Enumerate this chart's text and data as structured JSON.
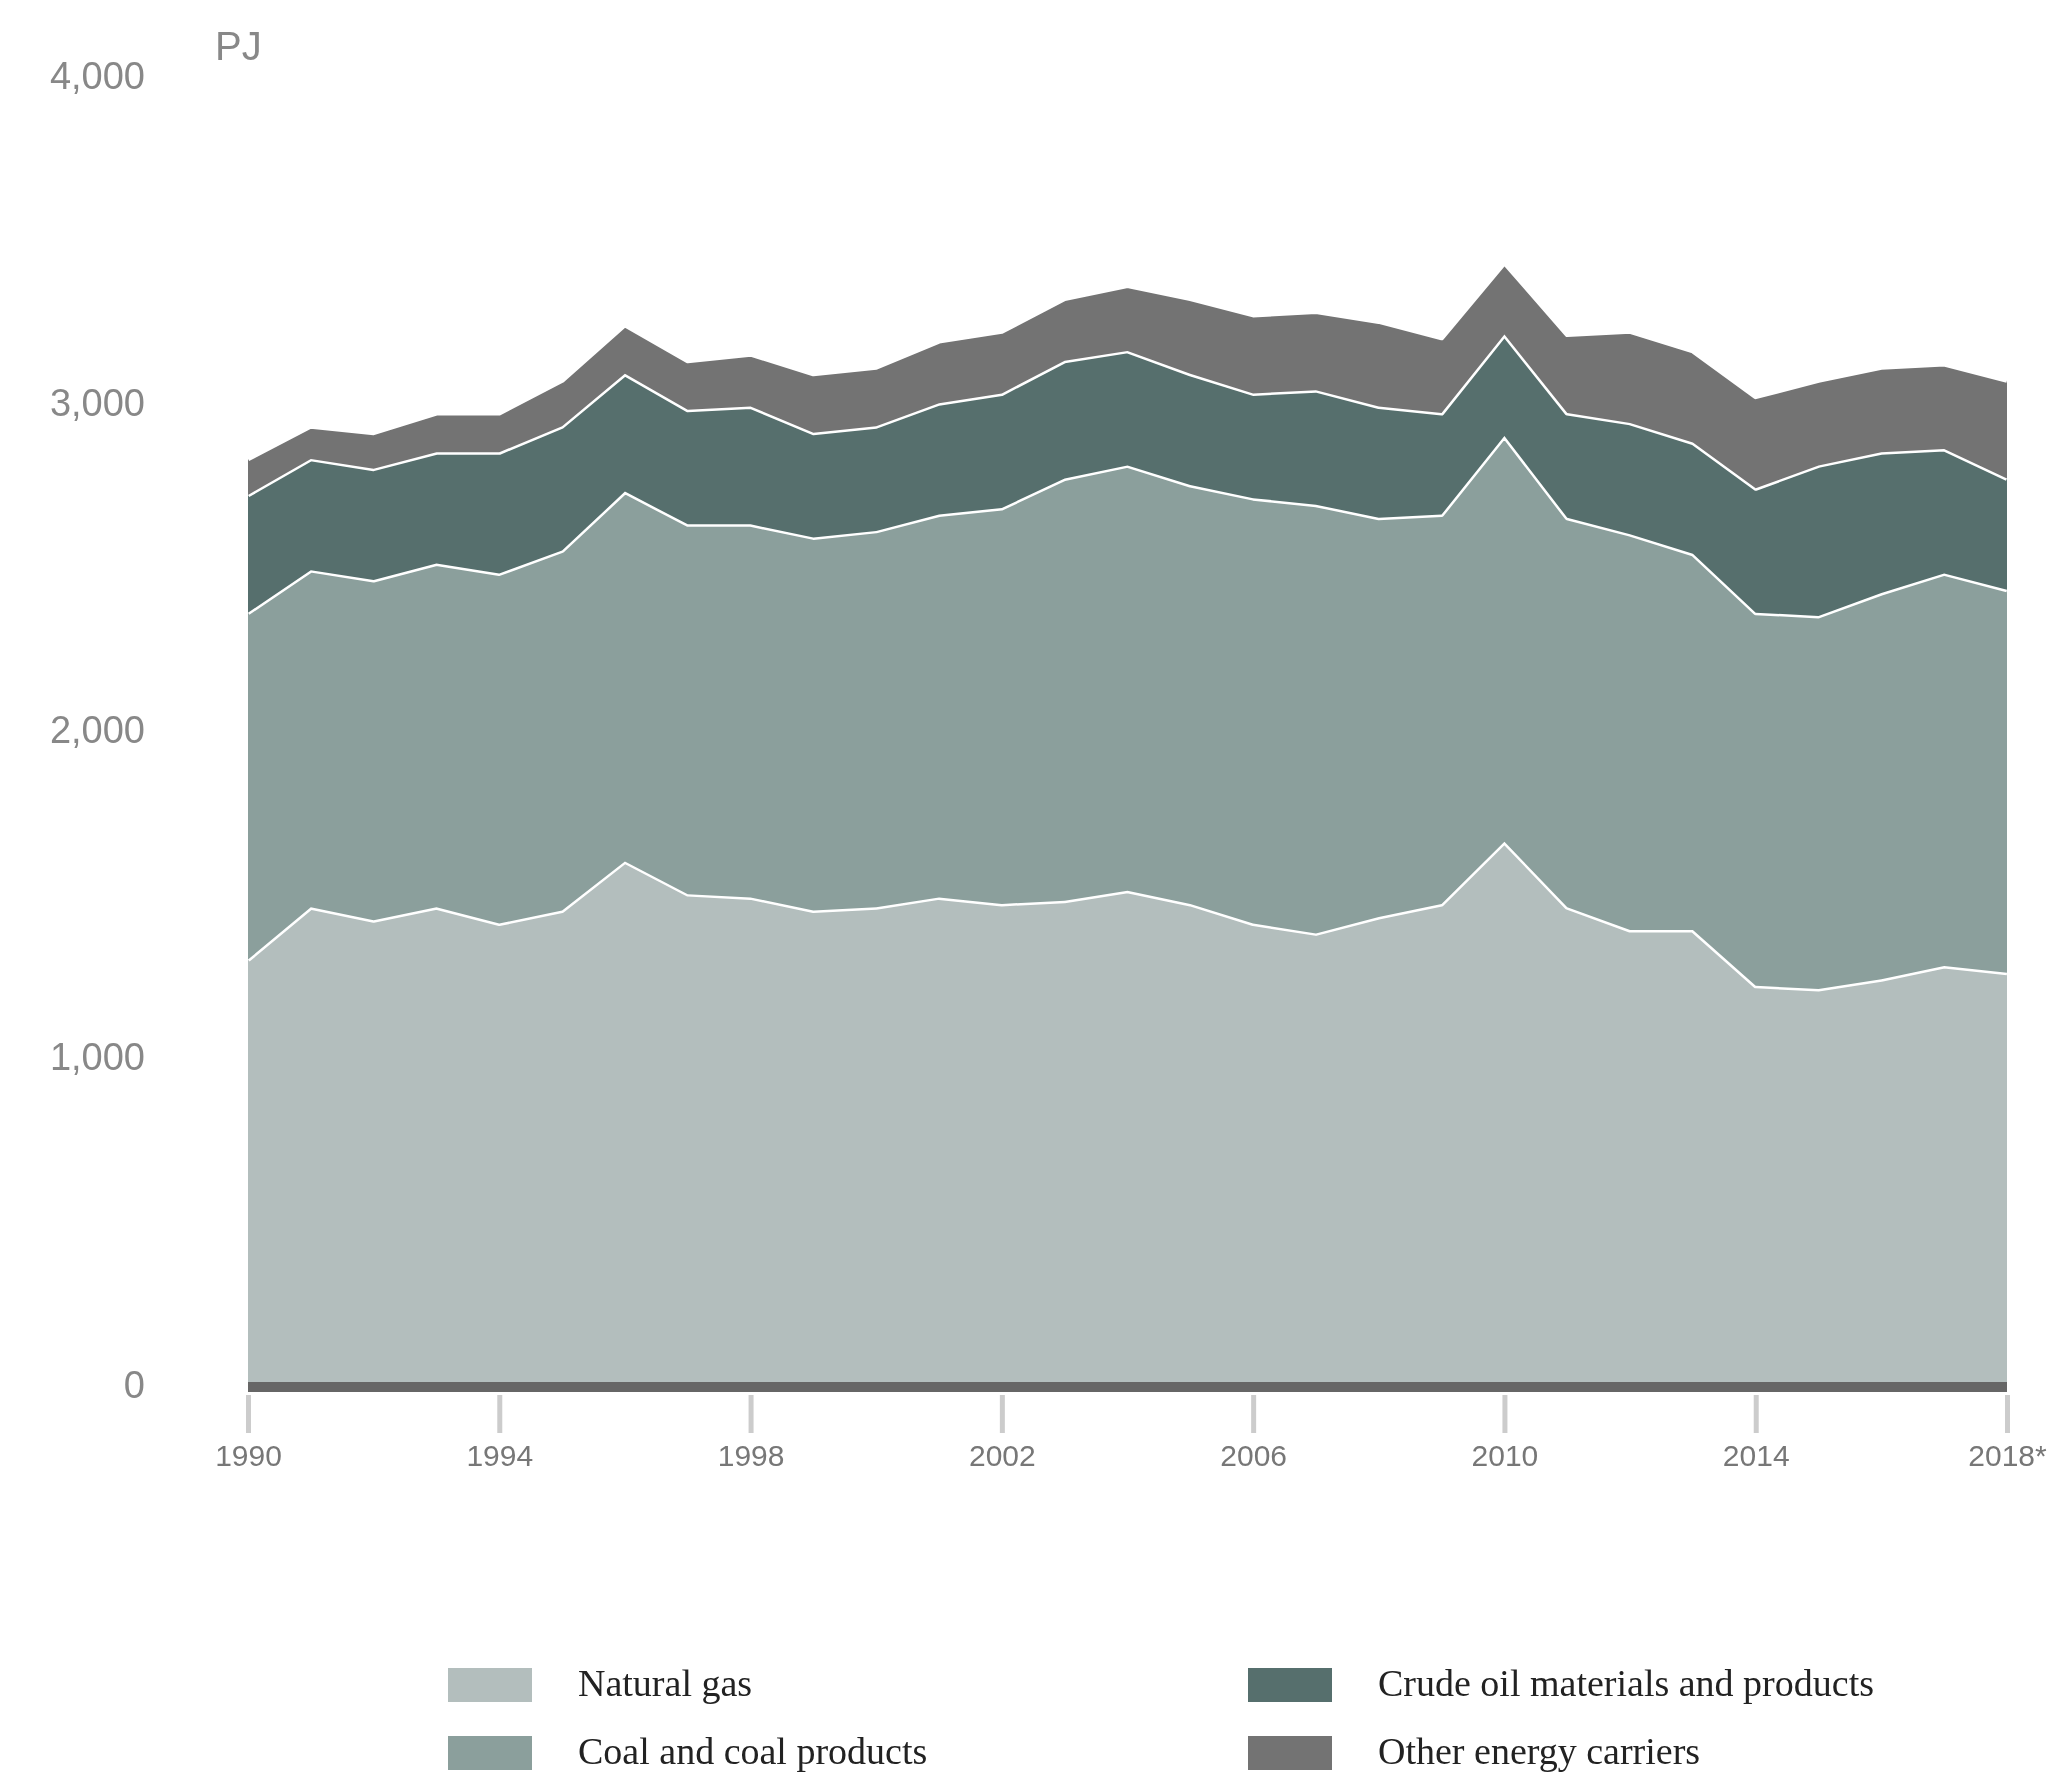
{
  "chart_data": {
    "type": "area",
    "stacked": true,
    "ylabel": "PJ",
    "x": [
      1990,
      1991,
      1992,
      1993,
      1994,
      1995,
      1996,
      1997,
      1998,
      1999,
      2000,
      2001,
      2002,
      2003,
      2004,
      2005,
      2006,
      2007,
      2008,
      2009,
      2010,
      2011,
      2012,
      2013,
      2014,
      2015,
      2016,
      2017,
      2018
    ],
    "xlim": [
      1990,
      2018
    ],
    "xticks": [
      1990,
      1994,
      1998,
      2002,
      2006,
      2010,
      2014,
      {
        "value": 2018,
        "label": "2018*"
      }
    ],
    "ylim": [
      0,
      4000
    ],
    "yticks": [
      0,
      {
        "value": 1000,
        "label": "1,000"
      },
      {
        "value": 2000,
        "label": "2,000"
      },
      {
        "value": 3000,
        "label": "3,000"
      },
      {
        "value": 4000,
        "label": "4,000"
      }
    ],
    "grid": false,
    "legend": "bottom",
    "series": [
      {
        "name": "Natural gas",
        "color": "#b3bebd",
        "values": [
          1300,
          1460,
          1420,
          1460,
          1410,
          1450,
          1600,
          1500,
          1490,
          1450,
          1460,
          1490,
          1470,
          1480,
          1510,
          1470,
          1410,
          1380,
          1430,
          1470,
          1660,
          1460,
          1390,
          1390,
          1220,
          1210,
          1240,
          1280,
          1260
        ]
      },
      {
        "name": "Coal and coal products",
        "color": "#8b9f9c",
        "values": [
          1060,
          1030,
          1040,
          1050,
          1070,
          1100,
          1130,
          1130,
          1140,
          1140,
          1150,
          1170,
          1210,
          1290,
          1300,
          1280,
          1300,
          1310,
          1220,
          1190,
          1240,
          1190,
          1210,
          1150,
          1140,
          1140,
          1180,
          1200,
          1170
        ]
      },
      {
        "name": "Crude oil materials and products",
        "color": "#566f6d",
        "values": [
          360,
          340,
          340,
          340,
          370,
          380,
          360,
          350,
          360,
          320,
          320,
          340,
          350,
          360,
          350,
          340,
          320,
          350,
          340,
          310,
          310,
          320,
          340,
          340,
          380,
          460,
          430,
          380,
          340
        ]
      },
      {
        "name": "Other energy carriers",
        "color": "#737373",
        "values": [
          110,
          100,
          110,
          120,
          120,
          140,
          150,
          150,
          160,
          180,
          180,
          190,
          190,
          190,
          200,
          230,
          240,
          240,
          260,
          230,
          220,
          240,
          280,
          280,
          280,
          260,
          260,
          260,
          300
        ]
      }
    ]
  }
}
